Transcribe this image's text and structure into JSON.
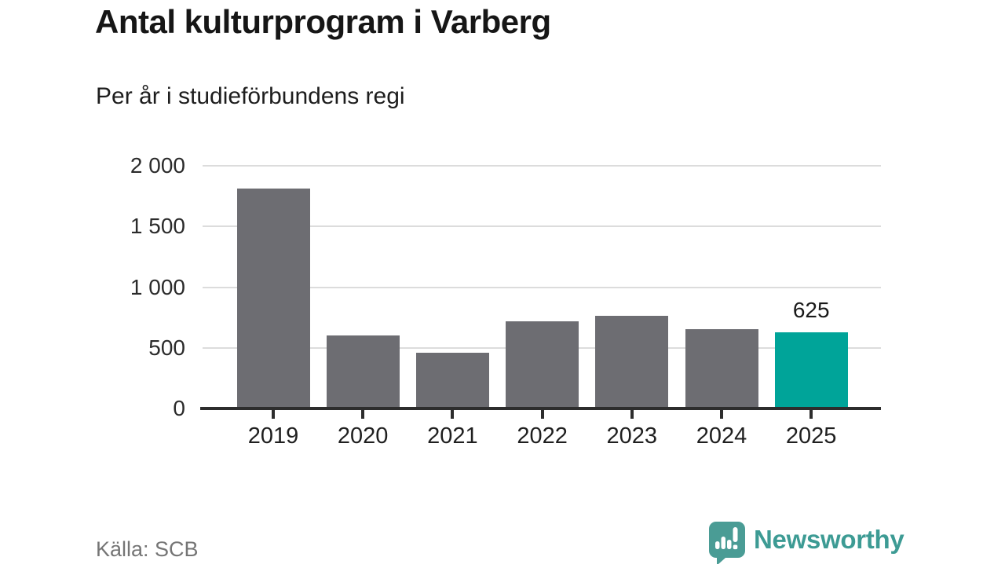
{
  "chart_data": {
    "type": "bar",
    "title": "Antal kulturprogram i Varberg",
    "subtitle": "Per år i studieförbundens regi",
    "source": "Källa: SCB",
    "categories": [
      "2019",
      "2020",
      "2021",
      "2022",
      "2023",
      "2024",
      "2025"
    ],
    "values": [
      1810,
      600,
      460,
      720,
      765,
      655,
      625
    ],
    "highlight_index": 6,
    "annotations": [
      {
        "index": 6,
        "text": "625"
      }
    ],
    "ylim": [
      0,
      2000
    ],
    "yticks": [
      {
        "value": 0,
        "label": "0"
      },
      {
        "value": 500,
        "label": "500"
      },
      {
        "value": 1000,
        "label": "1 000"
      },
      {
        "value": 1500,
        "label": "1 500"
      },
      {
        "value": 2000,
        "label": "2 000"
      }
    ],
    "xlabel": "",
    "ylabel": "",
    "grid": "horizontal",
    "legend": "none"
  },
  "branding": {
    "name": "Newsworthy",
    "icon": "newsworthy-speech-bubble-bar-chart-icon"
  },
  "colors": {
    "background": "#ffffff",
    "bar_default": "#6d6d72",
    "bar_highlight": "#00a499",
    "axis_line": "#2d2d2d",
    "gridline": "#dcdcdc",
    "title_text": "#161616",
    "tick_text": "#2b2b2b",
    "source_text": "#757575",
    "brand_teal": "#3d9b94"
  }
}
